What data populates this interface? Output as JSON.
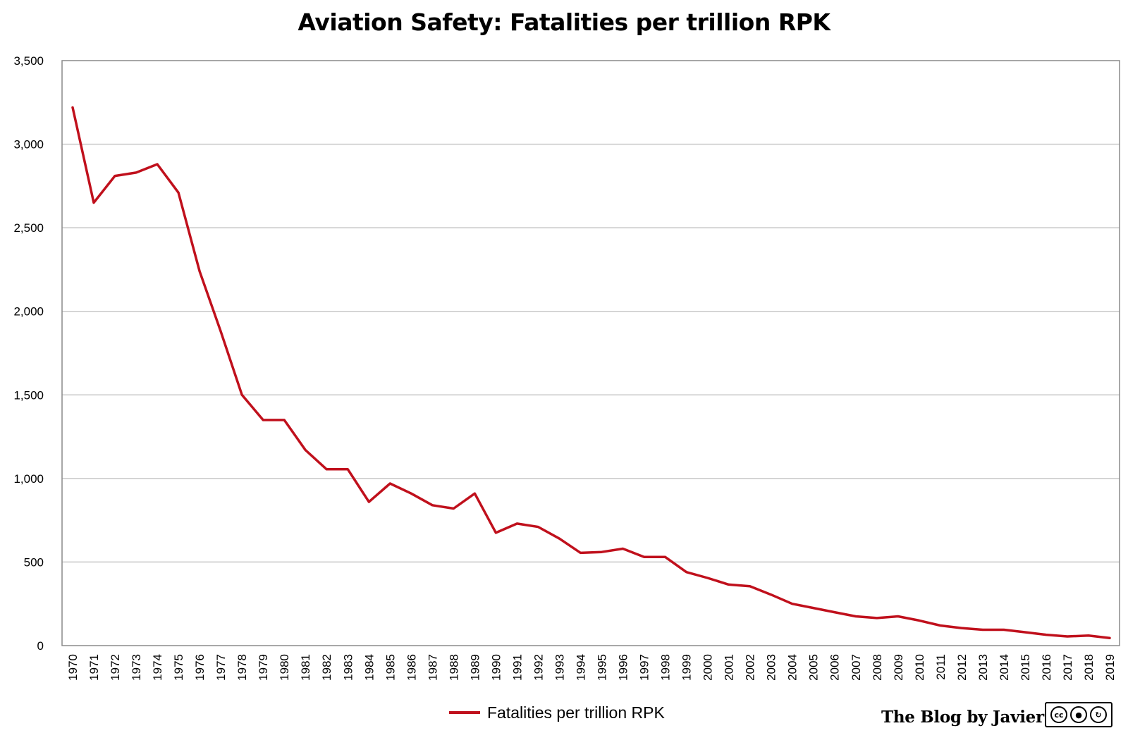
{
  "chart_data": {
    "type": "line",
    "title": "Aviation Safety: Fatalities per trillion RPK",
    "xlabel": "",
    "ylabel": "",
    "ylim": [
      0,
      3500
    ],
    "yticks": [
      "0",
      "500",
      "1,000",
      "1,500",
      "2,000",
      "2,500",
      "3,000",
      "3,500"
    ],
    "ytick_values": [
      0,
      500,
      1000,
      1500,
      2000,
      2500,
      3000,
      3500
    ],
    "grid": "horizontal",
    "legend_position": "bottom",
    "categories": [
      "1970",
      "1971",
      "1972",
      "1973",
      "1974",
      "1975",
      "1976",
      "1977",
      "1978",
      "1979",
      "1980",
      "1981",
      "1982",
      "1983",
      "1984",
      "1985",
      "1986",
      "1987",
      "1988",
      "1989",
      "1990",
      "1991",
      "1992",
      "1993",
      "1994",
      "1995",
      "1996",
      "1997",
      "1998",
      "1999",
      "2000",
      "2001",
      "2002",
      "2003",
      "2004",
      "2005",
      "2006",
      "2007",
      "2008",
      "2009",
      "2010",
      "2011",
      "2012",
      "2013",
      "2014",
      "2015",
      "2016",
      "2017",
      "2018",
      "2019"
    ],
    "series": [
      {
        "name": "Fatalities per trillion RPK",
        "color": "#c0101c",
        "values": [
          3220,
          2650,
          2810,
          2830,
          2880,
          2710,
          2240,
          1880,
          1500,
          1350,
          1350,
          1170,
          1055,
          1055,
          860,
          970,
          910,
          840,
          820,
          910,
          675,
          730,
          710,
          640,
          555,
          560,
          580,
          530,
          530,
          440,
          405,
          365,
          355,
          305,
          250,
          225,
          200,
          175,
          165,
          175,
          150,
          120,
          105,
          95,
          95,
          80,
          65,
          55,
          60,
          45
        ]
      }
    ]
  },
  "credit": {
    "text": "The Blog by Javier",
    "license_icon": "cc-by-sa-badge",
    "license_symbols": [
      "cc",
      "by",
      "sa"
    ]
  }
}
